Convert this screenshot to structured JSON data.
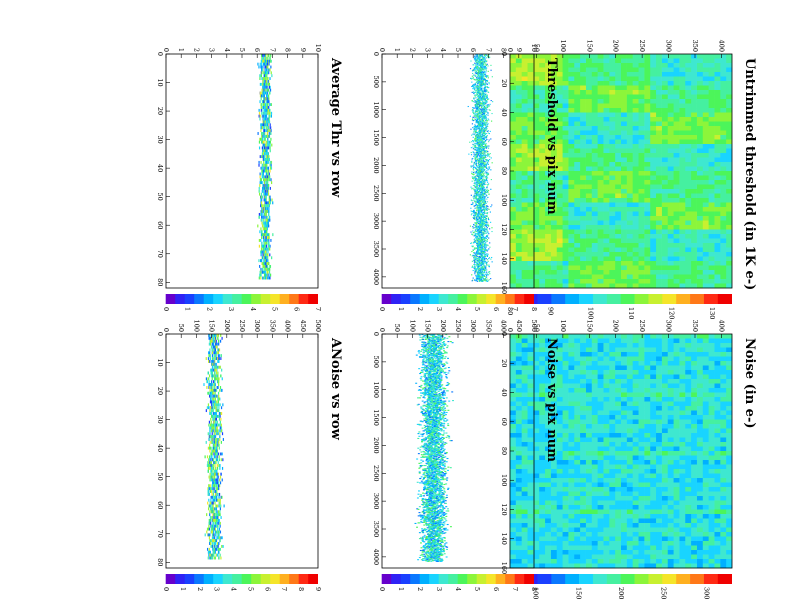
{
  "figure": {
    "orientation": "rotated 90 degrees clockwise",
    "background": "#ffffff"
  },
  "palette": [
    "#6600cc",
    "#2f22f5",
    "#1a40ff",
    "#0a78ff",
    "#00b0ff",
    "#19d4ff",
    "#3ee8d0",
    "#45f0a0",
    "#4cf55a",
    "#8cf53a",
    "#c8f030",
    "#f5e52a",
    "#ffb020",
    "#ff7818",
    "#ff2a14",
    "#f00000"
  ],
  "chart_data": [
    {
      "type": "heatmap",
      "title": "Untrimmed threshold (in 1K e-)",
      "xlim": [
        0,
        160
      ],
      "ylim": [
        0,
        420
      ],
      "xticks": [
        "0",
        "20",
        "40",
        "60",
        "80",
        "100",
        "120",
        "140",
        "160"
      ],
      "yticks": [
        "0",
        "50",
        "100",
        "150",
        "200",
        "250",
        "300",
        "350",
        "400"
      ],
      "zlim": [
        80,
        135
      ],
      "zticks": [
        "80",
        "90",
        "100",
        "110",
        "120",
        "130"
      ],
      "pattern": "blocks",
      "typical_value": 105
    },
    {
      "type": "heatmap",
      "title": "Noise (in e-)",
      "xlim": [
        0,
        160
      ],
      "ylim": [
        0,
        420
      ],
      "xticks": [
        "0",
        "20",
        "40",
        "60",
        "80",
        "100",
        "120",
        "140",
        "160"
      ],
      "yticks": [
        "0",
        "50",
        "100",
        "150",
        "200",
        "250",
        "300",
        "350",
        "400"
      ],
      "zlim": [
        70,
        330
      ],
      "zticks": [
        "100",
        "150",
        "200",
        "250",
        "300"
      ],
      "pattern": "noise",
      "typical_value": 170
    },
    {
      "type": "heatmap",
      "title": "Threshold vs pix num",
      "xlim": [
        0,
        4200
      ],
      "ylim": [
        0,
        10
      ],
      "xticks": [
        "0",
        "500",
        "1000",
        "1500",
        "2000",
        "2500",
        "3000",
        "3500",
        "4000"
      ],
      "yticks": [
        "0",
        "1",
        "2",
        "3",
        "4",
        "5",
        "6",
        "7",
        "8",
        "9",
        "10"
      ],
      "zlim": [
        0,
        8
      ],
      "zticks": [
        "0",
        "1",
        "2",
        "3",
        "4",
        "5",
        "6",
        "7",
        "8"
      ],
      "band": {
        "center": 6.5,
        "spread": 0.5,
        "x_end": 4080
      }
    },
    {
      "type": "heatmap",
      "title": "Noise vs pix num",
      "xlim": [
        0,
        4200
      ],
      "ylim": [
        0,
        500
      ],
      "xticks": [
        "0",
        "500",
        "1000",
        "1500",
        "2000",
        "2500",
        "3000",
        "3500",
        "4000"
      ],
      "yticks": [
        "0",
        "50",
        "100",
        "150",
        "200",
        "250",
        "300",
        "350",
        "400",
        "450",
        "500"
      ],
      "zlim": [
        0,
        8
      ],
      "zticks": [
        "0",
        "1",
        "2",
        "3",
        "4",
        "5",
        "6",
        "7",
        "8"
      ],
      "band": {
        "center": 170,
        "spread": 40,
        "x_end": 4080
      }
    },
    {
      "type": "heatmap",
      "title": "Average Thr vs row",
      "xlim": [
        0,
        82
      ],
      "ylim": [
        0,
        10
      ],
      "xticks": [
        "0",
        "10",
        "20",
        "30",
        "40",
        "50",
        "60",
        "70",
        "80"
      ],
      "yticks": [
        "0",
        "1",
        "2",
        "3",
        "4",
        "5",
        "6",
        "7",
        "8",
        "9",
        "10"
      ],
      "zlim": [
        0,
        7
      ],
      "zticks": [
        "0",
        "1",
        "2",
        "3",
        "4",
        "5",
        "6",
        "7"
      ],
      "band": {
        "center": 6.55,
        "spread": 0.35,
        "x_end": 79
      }
    },
    {
      "type": "heatmap",
      "title": "ANoise vs row",
      "xlim": [
        0,
        82
      ],
      "ylim": [
        0,
        500
      ],
      "xticks": [
        "0",
        "10",
        "20",
        "30",
        "40",
        "50",
        "60",
        "70",
        "80"
      ],
      "yticks": [
        "0",
        "50",
        "100",
        "150",
        "200",
        "250",
        "300",
        "350",
        "400",
        "450",
        "500"
      ],
      "zlim": [
        0,
        9
      ],
      "zticks": [
        "0",
        "1",
        "2",
        "3",
        "4",
        "5",
        "6",
        "7",
        "8",
        "9"
      ],
      "band": {
        "center": 160,
        "spread": 22,
        "x_end": 79
      }
    }
  ]
}
